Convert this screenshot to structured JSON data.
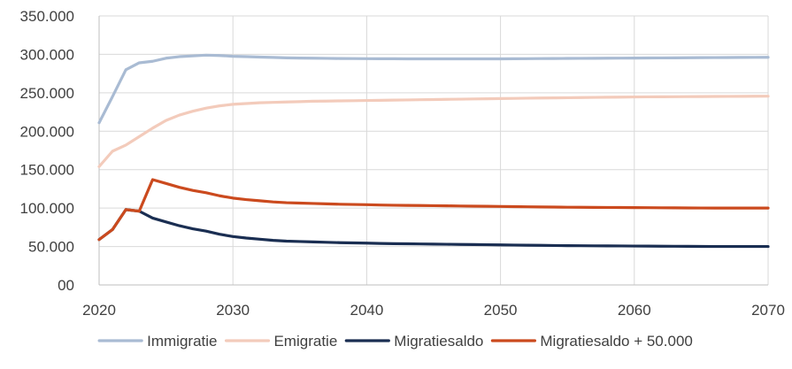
{
  "chart_data": {
    "type": "line",
    "x": [
      2020,
      2021,
      2022,
      2023,
      2024,
      2025,
      2026,
      2027,
      2028,
      2029,
      2030,
      2031,
      2032,
      2033,
      2034,
      2035,
      2036,
      2037,
      2038,
      2039,
      2040,
      2041,
      2042,
      2043,
      2044,
      2045,
      2046,
      2047,
      2048,
      2049,
      2050,
      2051,
      2052,
      2053,
      2054,
      2055,
      2056,
      2057,
      2058,
      2059,
      2060,
      2061,
      2062,
      2063,
      2064,
      2065,
      2066,
      2067,
      2068,
      2069,
      2070
    ],
    "xlim": [
      2020,
      2070
    ],
    "ylim": [
      0,
      350000
    ],
    "x_ticks": [
      "2020",
      "2030",
      "2040",
      "2050",
      "2060",
      "2070"
    ],
    "x_tick_values": [
      2020,
      2030,
      2040,
      2050,
      2060,
      2070
    ],
    "y_ticks": [
      "00",
      "50.000",
      "100.000",
      "150.000",
      "200.000",
      "250.000",
      "300.000",
      "350.000"
    ],
    "y_tick_values": [
      0,
      50000,
      100000,
      150000,
      200000,
      250000,
      300000,
      350000
    ],
    "grid": true,
    "legend_position": "bottom",
    "series": [
      {
        "name": "Immigratie",
        "color": "#a9bbd3",
        "values": [
          211000,
          245000,
          280000,
          289000,
          291000,
          295000,
          297000,
          298000,
          299000,
          298500,
          297500,
          297000,
          296500,
          296000,
          295500,
          295200,
          295000,
          294800,
          294600,
          294500,
          294400,
          294300,
          294300,
          294200,
          294200,
          294200,
          294200,
          294200,
          294200,
          294200,
          294200,
          294300,
          294400,
          294500,
          294600,
          294700,
          294800,
          294900,
          295000,
          295100,
          295200,
          295300,
          295400,
          295500,
          295600,
          295700,
          295800,
          295900,
          296000,
          296100,
          296200
        ]
      },
      {
        "name": "Emigratie",
        "color": "#f3cbbb",
        "values": [
          154000,
          174000,
          182000,
          193000,
          204000,
          214000,
          221000,
          226000,
          230000,
          233000,
          235000,
          236000,
          237000,
          237500,
          238000,
          238500,
          239000,
          239200,
          239500,
          239700,
          240000,
          240200,
          240500,
          240700,
          241000,
          241200,
          241500,
          241700,
          242000,
          242200,
          242500,
          242700,
          243000,
          243200,
          243400,
          243600,
          243800,
          244000,
          244200,
          244400,
          244600,
          244700,
          244800,
          244900,
          245000,
          245100,
          245200,
          245300,
          245400,
          245500,
          245600
        ]
      },
      {
        "name": "Migratiesaldo",
        "color": "#1a2e52",
        "values": [
          59000,
          72000,
          98000,
          96000,
          87000,
          82000,
          77000,
          73000,
          70000,
          66000,
          63000,
          61000,
          59500,
          58000,
          57000,
          56500,
          56000,
          55500,
          55000,
          54700,
          54400,
          54000,
          53700,
          53500,
          53300,
          53100,
          52900,
          52700,
          52500,
          52300,
          52100,
          51900,
          51700,
          51500,
          51300,
          51100,
          51000,
          50900,
          50800,
          50700,
          50600,
          50500,
          50400,
          50300,
          50200,
          50100,
          50000,
          50000,
          50000,
          50000,
          50000
        ]
      },
      {
        "name": "Migratiesaldo + 50.000",
        "color": "#cb4a1e",
        "values": [
          59000,
          72000,
          98000,
          96000,
          137000,
          132000,
          127000,
          123000,
          120000,
          116000,
          113000,
          111000,
          109500,
          108000,
          107000,
          106500,
          106000,
          105500,
          105000,
          104700,
          104400,
          104000,
          103700,
          103500,
          103300,
          103100,
          102900,
          102700,
          102500,
          102300,
          102100,
          101900,
          101700,
          101500,
          101300,
          101100,
          101000,
          100900,
          100800,
          100700,
          100600,
          100500,
          100400,
          100300,
          100200,
          100100,
          100000,
          100000,
          100000,
          100000,
          100000
        ]
      }
    ]
  }
}
